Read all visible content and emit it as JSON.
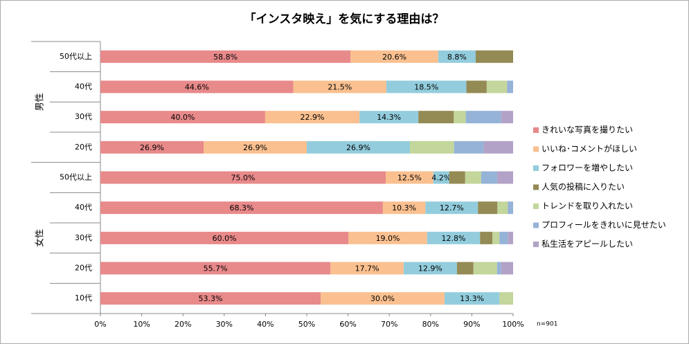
{
  "chart_data": {
    "type": "bar",
    "orientation": "horizontal",
    "stacking": "percent",
    "title": "「インスタ映え」を気にする理由は？",
    "annotation": "n=901",
    "groups": [
      {
        "name": "男性",
        "categories": [
          "50代以上",
          "40代",
          "30代",
          "20代"
        ]
      },
      {
        "name": "女性",
        "categories": [
          "50代以上",
          "40代",
          "30代",
          "20代",
          "10代"
        ]
      }
    ],
    "series": [
      {
        "name": "きれいな写真を撮りたい",
        "color": "#e8898a",
        "values": [
          58.8,
          44.6,
          40.0,
          26.9,
          75.0,
          68.3,
          60.0,
          55.7,
          53.3
        ],
        "value_labels": [
          "58.8%",
          "44.6%",
          "40.0%",
          "26.9%",
          "75.0%",
          "68.3%",
          "60.0%",
          "55.7%",
          "53.3%"
        ]
      },
      {
        "name": "いいね･コメントがほしい",
        "color": "#fac090",
        "values": [
          20.6,
          21.5,
          22.9,
          26.9,
          12.5,
          10.3,
          19.0,
          17.7,
          30.0
        ],
        "value_labels": [
          "20.6%",
          "21.5%",
          "22.9%",
          "26.9%",
          "12.5%",
          "10.3%",
          "19.0%",
          "17.7%",
          "30.0%"
        ]
      },
      {
        "name": "フォロワーを増やしたい",
        "color": "#93cddd",
        "values": [
          8.8,
          18.5,
          14.3,
          26.9,
          4.2,
          12.7,
          12.8,
          12.9,
          13.3
        ],
        "value_labels": [
          "8.8%",
          "18.5%",
          "14.3%",
          "26.9%",
          "4.2%",
          "12.7%",
          "12.8%",
          "12.9%",
          "13.3%"
        ]
      },
      {
        "name": "人気の投稿に入りたい",
        "color": "#948a54",
        "values": [
          8.8,
          4.7,
          8.6,
          0,
          4.2,
          4.7,
          3.0,
          4.0,
          0
        ]
      },
      {
        "name": "トレンドを取り入れたい",
        "color": "#c3d69b",
        "values": [
          0,
          4.7,
          2.9,
          11.5,
          4.2,
          2.5,
          1.7,
          5.7,
          3.3
        ]
      },
      {
        "name": "プロフィールをきれいに見せたい",
        "color": "#95b3d7",
        "values": [
          0,
          1.4,
          8.6,
          7.7,
          4.2,
          1.3,
          2.0,
          1.0,
          0
        ]
      },
      {
        "name": "私生活をアピールしたい",
        "color": "#b3a2c7",
        "values": [
          0,
          0,
          2.9,
          7.7,
          4.2,
          0,
          1.3,
          2.9,
          0
        ]
      }
    ],
    "xlim": [
      0,
      100
    ],
    "xticks": [
      {
        "value": 0,
        "label": "0%"
      },
      {
        "value": 10,
        "label": "10%"
      },
      {
        "value": 20,
        "label": "20%"
      },
      {
        "value": 30,
        "label": "30%"
      },
      {
        "value": 40,
        "label": "40%"
      },
      {
        "value": 50,
        "label": "50%"
      },
      {
        "value": 60,
        "label": "60%"
      },
      {
        "value": 70,
        "label": "70%"
      },
      {
        "value": 80,
        "label": "80%"
      },
      {
        "value": 90,
        "label": "90%"
      },
      {
        "value": 100,
        "label": "100%"
      }
    ],
    "legend": "right"
  }
}
